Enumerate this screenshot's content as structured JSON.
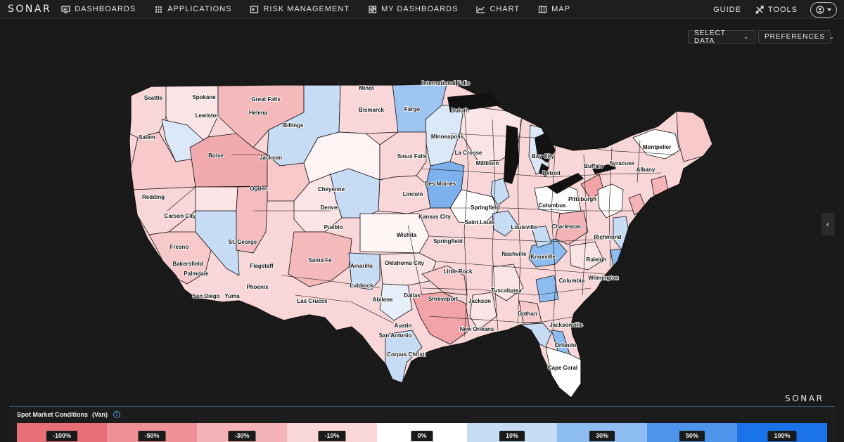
{
  "nav": {
    "logo": "SONAR",
    "items": [
      {
        "label": "DASHBOARDS",
        "icon": "monitor-icon"
      },
      {
        "label": "APPLICATIONS",
        "icon": "grid-icon"
      },
      {
        "label": "RISK MANAGEMENT",
        "icon": "calendar-icon"
      },
      {
        "label": "MY DASHBOARDS",
        "icon": "dashboard-grid-icon"
      },
      {
        "label": "CHART",
        "icon": "line-chart-icon"
      },
      {
        "label": "MAP",
        "icon": "map-icon"
      }
    ],
    "guide": "GUIDE",
    "tools": "TOOLS",
    "account_icon": "user-circle-icon"
  },
  "toolbar": {
    "select_data": "SELECT DATA",
    "preferences": "PREFERENCES"
  },
  "map": {
    "watermark": "SONAR",
    "cities": [
      "International Falls",
      "Seattle",
      "Spokane",
      "Great Falls",
      "Minot",
      "Fargo",
      "Duluth",
      "Lewiston",
      "Helena",
      "Bismarck",
      "Billings",
      "Minneapolis",
      "Montpelier",
      "Salem",
      "Boise",
      "Jackson",
      "Sioux Falls",
      "La Crosse",
      "Bay City",
      "Madison",
      "Syracuse",
      "Buffalo",
      "Albany",
      "Detroit",
      "Des Moines",
      "Cheyenne",
      "Ogden",
      "Redding",
      "Lincoln",
      "Denver",
      "Pittsburgh",
      "Columbus",
      "Springfield",
      "Carson City",
      "Kansas City",
      "Saint Louis",
      "Pueblo",
      "Louisville",
      "Charleston",
      "Wichita",
      "Springfield",
      "St. George",
      "Richmond",
      "Fresno",
      "Nashville",
      "Knoxville",
      "Oklahoma City",
      "Santa Fe",
      "Amarillo",
      "Bakersfield",
      "Flagstaff",
      "Raleigh",
      "Little Rock",
      "Palmdale",
      "Wilmington",
      "Lubbock",
      "Columbia",
      "Phoenix",
      "Tuscaloosa",
      "Yuma",
      "San Diego",
      "Abilene",
      "Dallas",
      "Las Cruces",
      "Shreveport",
      "Jackson",
      "Dothan",
      "Austin",
      "New Orleans",
      "Jacksonville",
      "San Antonio",
      "Orlando",
      "Corpus Christi",
      "Cape Coral"
    ]
  },
  "legend": {
    "title": "Spot Market Conditions",
    "unit": "(Van)",
    "info_icon": "info-icon",
    "segments": [
      {
        "label": "-100%",
        "color": "#e86f78"
      },
      {
        "label": "-50%",
        "color": "#ee9096"
      },
      {
        "label": "-30%",
        "color": "#f4b3b6"
      },
      {
        "label": "-10%",
        "color": "#f9d6d7"
      },
      {
        "label": "0%",
        "color": "#ffffff"
      },
      {
        "label": "10%",
        "color": "#c6dcf5"
      },
      {
        "label": "30%",
        "color": "#8dbcf0"
      },
      {
        "label": "50%",
        "color": "#4d95ea"
      },
      {
        "label": "100%",
        "color": "#1a73e8"
      }
    ]
  }
}
